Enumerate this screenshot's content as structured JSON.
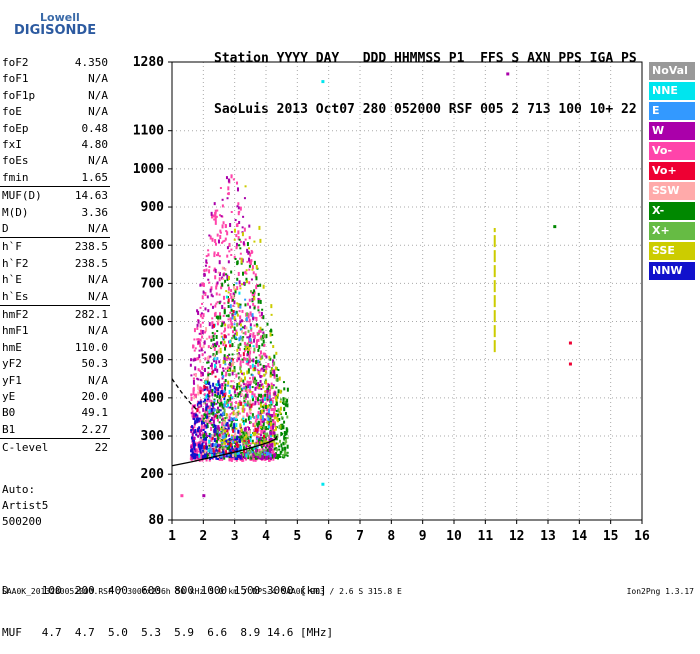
{
  "logo": {
    "line1": "Lowell",
    "line2": "DIGISONDE"
  },
  "header": {
    "row1": "Station YYYY DAY   DDD HHMMSS P1  FFS S AXN PPS IGA PS",
    "row2": "SaoLuis 2013 Oct07 280 052000 RSF 005 2 713 100 10+ 22"
  },
  "params": [
    {
      "name": "foF2",
      "value": "4.350"
    },
    {
      "name": "foF1",
      "value": "N/A"
    },
    {
      "name": "foF1p",
      "value": "N/A"
    },
    {
      "name": "foE",
      "value": "N/A"
    },
    {
      "name": "foEp",
      "value": "0.48"
    },
    {
      "name": "fxI",
      "value": "4.80"
    },
    {
      "name": "foEs",
      "value": "N/A"
    },
    {
      "name": "fmin",
      "value": "1.65"
    },
    {
      "name": "MUF(D)",
      "value": "14.63"
    },
    {
      "name": "M(D)",
      "value": "3.36"
    },
    {
      "name": "D",
      "value": "N/A"
    },
    {
      "name": "h`F",
      "value": "238.5"
    },
    {
      "name": "h`F2",
      "value": "238.5"
    },
    {
      "name": "h`E",
      "value": "N/A"
    },
    {
      "name": "h`Es",
      "value": "N/A"
    },
    {
      "name": "hmF2",
      "value": "282.1"
    },
    {
      "name": "hmF1",
      "value": "N/A"
    },
    {
      "name": "hmE",
      "value": "110.0"
    },
    {
      "name": "yF2",
      "value": "50.3"
    },
    {
      "name": "yF1",
      "value": "N/A"
    },
    {
      "name": "yE",
      "value": "20.0"
    },
    {
      "name": "B0",
      "value": "49.1"
    },
    {
      "name": "B1",
      "value": "2.27"
    },
    {
      "name": "C-level",
      "value": "22"
    }
  ],
  "auto": {
    "line1": "Auto:",
    "line2": "Artist5",
    "line3": "500200"
  },
  "legend": [
    {
      "label": "NoVal",
      "color": "#999999"
    },
    {
      "label": "NNE",
      "color": "#00e5ee"
    },
    {
      "label": "E",
      "color": "#3399ff"
    },
    {
      "label": "W",
      "color": "#aa00aa"
    },
    {
      "label": "Vo-",
      "color": "#ff44aa"
    },
    {
      "label": "Vo+",
      "color": "#ee0033"
    },
    {
      "label": "SSW",
      "color": "#ffaaaa"
    },
    {
      "label": "X-",
      "color": "#008800"
    },
    {
      "label": "X+",
      "color": "#66bb44"
    },
    {
      "label": "SSE",
      "color": "#cccc00"
    },
    {
      "label": "NNW",
      "color": "#1111cc"
    }
  ],
  "bottom": {
    "row1": "D     100  200  400  600  800 1000 1500 3000 [km]",
    "row2": "MUF   4.7  4.7  5.0  5.3  5.9  6.6  8.9 14.6 [MHz]"
  },
  "footer": {
    "left": "SAA0K_2013280052000.RSF / 300fx256h 50 kHz 5.0 km / DPS-4 SAA0K 903 / 2.6 S 315.8 E",
    "right": "Ion2Png 1.3.17"
  },
  "chart_data": {
    "type": "scatter",
    "title": "",
    "xlabel": "",
    "ylabel": "",
    "xlim": [
      1,
      16
    ],
    "ylim": [
      80,
      1280
    ],
    "xticks": [
      1,
      2,
      3,
      4,
      5,
      6,
      7,
      8,
      9,
      10,
      11,
      12,
      13,
      14,
      15,
      16
    ],
    "yticks": [
      80,
      200,
      300,
      400,
      500,
      600,
      700,
      800,
      900,
      1000,
      1100,
      1280
    ],
    "grid": true,
    "legend_position": "right",
    "traces": [
      {
        "name": "ordinary trace",
        "color": "#000000",
        "x": [
          1.0,
          1.6,
          2.2,
          2.8,
          3.3,
          3.8,
          4.1,
          4.3,
          4.35
        ],
        "y": [
          222,
          232,
          243,
          254,
          264,
          276,
          284,
          292,
          300
        ]
      },
      {
        "name": "dashed trace",
        "color": "#000000",
        "x": [
          1.0,
          1.3,
          1.6,
          1.8
        ],
        "y": [
          450,
          415,
          385,
          368
        ]
      }
    ],
    "clusters": [
      {
        "series": "Vo-",
        "xrange": [
          1.6,
          4.3
        ],
        "yrange": [
          240,
          1000
        ],
        "count": 900
      },
      {
        "series": "X-",
        "xrange": [
          2.0,
          4.7
        ],
        "yrange": [
          245,
          820
        ],
        "count": 550
      },
      {
        "series": "W",
        "xrange": [
          1.6,
          4.3
        ],
        "yrange": [
          245,
          1030
        ],
        "count": 380
      },
      {
        "series": "NNW",
        "xrange": [
          1.6,
          3.2
        ],
        "yrange": [
          245,
          460
        ],
        "count": 200
      },
      {
        "series": "SSE",
        "xrange": [
          2.5,
          4.5
        ],
        "yrange": [
          280,
          1000
        ],
        "count": 160
      },
      {
        "series": "E",
        "xrange": [
          2.2,
          4.2
        ],
        "yrange": [
          250,
          720
        ],
        "count": 90
      },
      {
        "series": "X+",
        "xrange": [
          2.4,
          4.7
        ],
        "yrange": [
          250,
          700
        ],
        "count": 110
      },
      {
        "series": "SSW",
        "xrange": [
          1.7,
          3.9
        ],
        "yrange": [
          250,
          800
        ],
        "count": 70
      },
      {
        "series": "NNE",
        "xrange": [
          1.8,
          4.2
        ],
        "yrange": [
          250,
          700
        ],
        "count": 40
      },
      {
        "series": "Vo+",
        "xrange": [
          1.8,
          4.0
        ],
        "yrange": [
          260,
          700
        ],
        "count": 40
      }
    ],
    "isolated_points": [
      {
        "series": "W",
        "x": 11.7,
        "y": 1250
      },
      {
        "series": "NNE",
        "x": 5.8,
        "y": 1230
      },
      {
        "series": "X-",
        "x": 13.2,
        "y": 850
      },
      {
        "series": "Vo+",
        "x": 13.7,
        "y": 545
      },
      {
        "series": "Vo+",
        "x": 13.7,
        "y": 490
      },
      {
        "series": "NNE",
        "x": 5.8,
        "y": 175
      },
      {
        "series": "Vo-",
        "x": 1.3,
        "y": 145
      },
      {
        "series": "W",
        "x": 2.0,
        "y": 145
      }
    ],
    "vertical_segments": [
      {
        "series": "SSE",
        "x": 11.3,
        "y0": 520,
        "y1": 845
      }
    ]
  }
}
